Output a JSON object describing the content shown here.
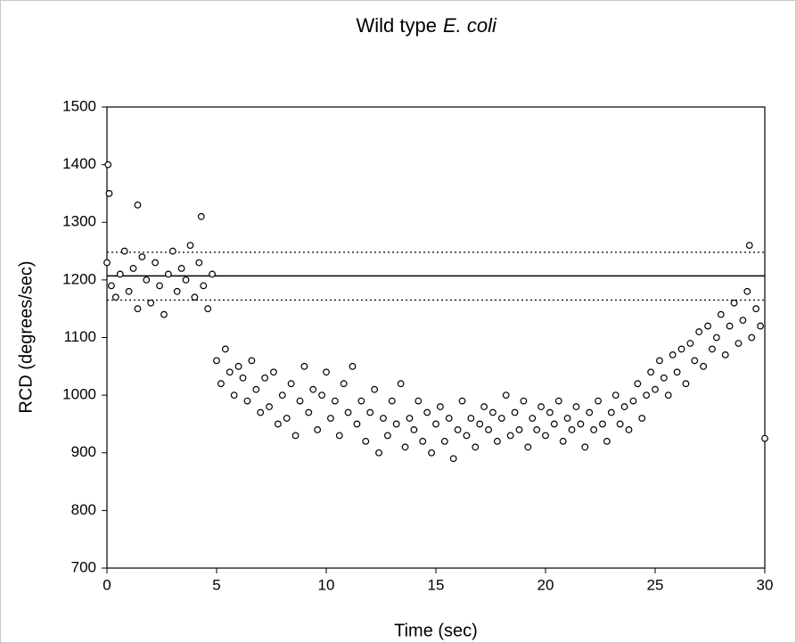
{
  "chart_data": {
    "type": "scatter",
    "title": "Wild type",
    "title_italic": "E. coli",
    "x_label": "Time (sec)",
    "y_label": "RCD (degrees/sec)",
    "xlim": [
      0,
      30
    ],
    "xticks": [
      0,
      5,
      10,
      15,
      20,
      25,
      30
    ],
    "ylim": [
      700,
      1500
    ],
    "yticks": [
      700,
      800,
      900,
      1000,
      1100,
      1200,
      1300,
      1400,
      1500
    ],
    "grid": false,
    "marker_color": "#000000",
    "hlines": [
      {
        "value": 1207,
        "style": "solid"
      },
      {
        "value": 1248,
        "style": "dotted"
      },
      {
        "value": 1165,
        "style": "dotted"
      }
    ],
    "x": [
      0.0,
      0.2,
      0.4,
      0.6,
      0.8,
      1.0,
      1.2,
      1.4,
      1.6,
      1.8,
      2.0,
      2.2,
      2.4,
      2.6,
      2.8,
      3.0,
      3.2,
      3.4,
      3.6,
      3.8,
      4.0,
      4.2,
      4.4,
      4.6,
      4.8,
      5.0,
      5.2,
      5.4,
      5.6,
      5.8,
      6.0,
      6.2,
      6.4,
      6.6,
      6.8,
      7.0,
      7.2,
      7.4,
      7.6,
      7.8,
      8.0,
      8.2,
      8.4,
      8.6,
      8.8,
      9.0,
      9.2,
      9.4,
      9.6,
      9.8,
      10.0,
      10.2,
      10.4,
      10.6,
      10.8,
      11.0,
      11.2,
      11.4,
      11.6,
      11.8,
      12.0,
      12.2,
      12.4,
      12.6,
      12.8,
      13.0,
      13.2,
      13.4,
      13.6,
      13.8,
      14.0,
      14.2,
      14.4,
      14.6,
      14.8,
      15.0,
      15.2,
      15.4,
      15.6,
      15.8,
      16.0,
      16.2,
      16.4,
      16.6,
      16.8,
      17.0,
      17.2,
      17.4,
      17.6,
      17.8,
      18.0,
      18.2,
      18.4,
      18.6,
      18.8,
      19.0,
      19.2,
      19.4,
      19.6,
      19.8,
      20.0,
      20.2,
      20.4,
      20.6,
      20.8,
      21.0,
      21.2,
      21.4,
      21.6,
      21.8,
      22.0,
      22.2,
      22.4,
      22.6,
      22.8,
      23.0,
      23.2,
      23.4,
      23.6,
      23.8,
      24.0,
      24.2,
      24.4,
      24.6,
      24.8,
      25.0,
      25.2,
      25.4,
      25.6,
      25.8,
      26.0,
      26.2,
      26.4,
      26.6,
      26.8,
      27.0,
      27.2,
      27.4,
      27.6,
      27.8,
      28.0,
      28.2,
      28.4,
      28.6,
      28.8,
      29.0,
      29.2,
      29.4,
      29.6,
      29.8,
      0.05,
      0.1,
      1.4,
      4.3,
      29.3,
      30.0
    ],
    "values": [
      1230,
      1190,
      1170,
      1210,
      1250,
      1180,
      1220,
      1150,
      1240,
      1200,
      1160,
      1230,
      1190,
      1140,
      1210,
      1250,
      1180,
      1220,
      1200,
      1260,
      1170,
      1230,
      1190,
      1150,
      1210,
      1060,
      1020,
      1080,
      1040,
      1000,
      1050,
      1030,
      990,
      1060,
      1010,
      970,
      1030,
      980,
      1040,
      950,
      1000,
      960,
      1020,
      930,
      990,
      1050,
      970,
      1010,
      940,
      1000,
      1040,
      960,
      990,
      930,
      1020,
      970,
      1050,
      950,
      990,
      920,
      970,
      1010,
      900,
      960,
      930,
      990,
      950,
      1020,
      910,
      960,
      940,
      990,
      920,
      970,
      900,
      950,
      980,
      920,
      960,
      890,
      940,
      990,
      930,
      960,
      910,
      950,
      980,
      940,
      970,
      920,
      960,
      1000,
      930,
      970,
      940,
      990,
      910,
      960,
      940,
      980,
      930,
      970,
      950,
      990,
      920,
      960,
      940,
      980,
      950,
      910,
      970,
      940,
      990,
      950,
      920,
      970,
      1000,
      950,
      980,
      940,
      990,
      1020,
      960,
      1000,
      1040,
      1010,
      1060,
      1030,
      1000,
      1070,
      1040,
      1080,
      1020,
      1090,
      1060,
      1110,
      1050,
      1120,
      1080,
      1100,
      1140,
      1070,
      1120,
      1160,
      1090,
      1130,
      1180,
      1100,
      1150,
      1120,
      1400,
      1350,
      1330,
      1310,
      1260,
      925
    ]
  }
}
